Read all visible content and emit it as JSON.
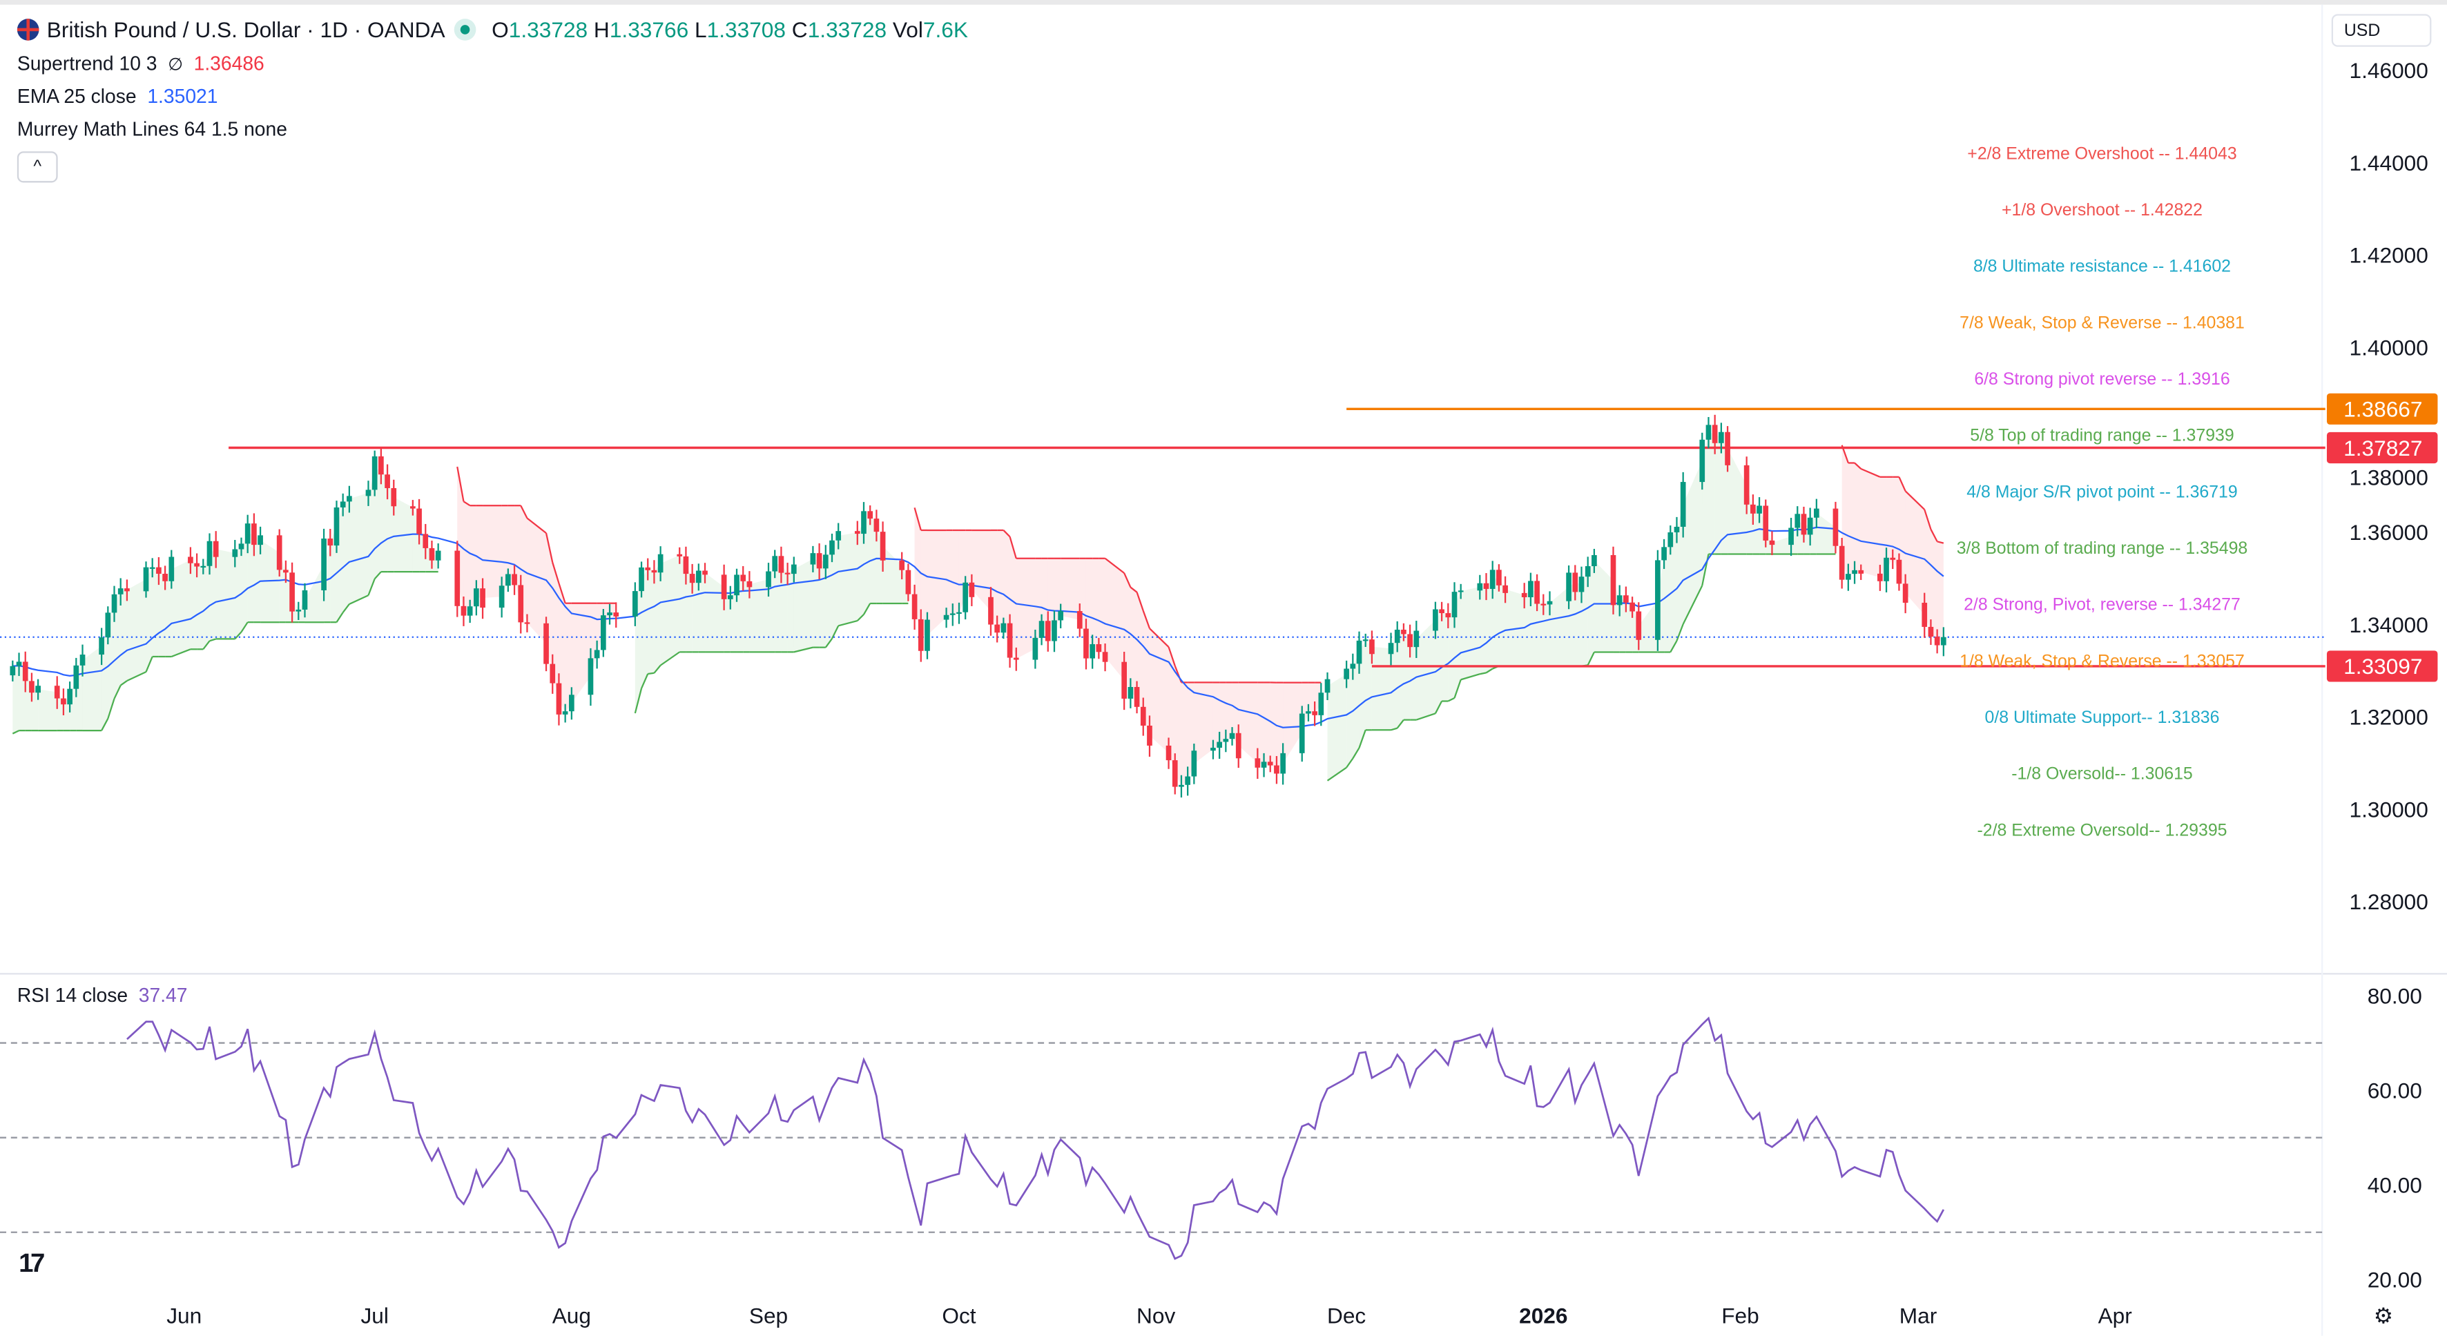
{
  "header": {
    "symbol_title": "British Pound / U.S. Dollar · 1D · OANDA",
    "o_label": "O",
    "o": "1.33728",
    "h_label": "H",
    "h": "1.33766",
    "l_label": "L",
    "l": "1.33708",
    "c_label": "C",
    "c": "1.33728",
    "vol_label": "Vol",
    "vol": "7.6K"
  },
  "indicators": {
    "supertrend": {
      "label": "Supertrend 10 3",
      "symbol": "∅",
      "value": "1.36486"
    },
    "ema": {
      "label": "EMA 25 close",
      "value": "1.35021"
    },
    "murrey": {
      "label": "Murrey Math Lines 64 1.5 none"
    },
    "rsi": {
      "label": "RSI 14 close",
      "value": "37.47"
    }
  },
  "currency": "USD",
  "collapse_icon": "^",
  "logo": "TV",
  "settings_icon": "gear-icon",
  "colors": {
    "up": "#089981",
    "down": "#f23645",
    "ema": "#2962ff",
    "rsi": "#7e57c2",
    "supertrend_up": "#4caf50",
    "supertrend_down": "#f23645",
    "orange_line": "#f57c00"
  },
  "chart_data": {
    "type": "candlestick",
    "title": "British Pound / U.S. Dollar · 1D · OANDA",
    "ylim": [
      1.27,
      1.465
    ],
    "price_ticks": [
      "1.46000",
      "1.44000",
      "1.42000",
      "1.40000",
      "1.38000",
      "1.36000",
      "1.34000",
      "1.32000",
      "1.30000",
      "1.28000"
    ],
    "price_tick_values": [
      1.46,
      1.44,
      1.42,
      1.4,
      1.38,
      1.36,
      1.34,
      1.32,
      1.3,
      1.28
    ],
    "time_ticks": [
      {
        "label": "Jun",
        "date": "2025-06-01"
      },
      {
        "label": "Jul",
        "date": "2025-07-01"
      },
      {
        "label": "Aug",
        "date": "2025-08-01"
      },
      {
        "label": "Sep",
        "date": "2025-09-01"
      },
      {
        "label": "Oct",
        "date": "2025-10-01"
      },
      {
        "label": "Nov",
        "date": "2025-11-01"
      },
      {
        "label": "Dec",
        "date": "2025-12-01"
      },
      {
        "label": "2026",
        "date": "2026-01-01"
      },
      {
        "label": "Feb",
        "date": "2026-02-01"
      },
      {
        "label": "Mar",
        "date": "2026-03-01"
      },
      {
        "label": "Apr",
        "date": "2026-04-01"
      }
    ],
    "rsi_ticks": [
      "80.00",
      "60.00",
      "40.00",
      "20.00"
    ],
    "rsi_tick_values": [
      80,
      60,
      40,
      20
    ],
    "rsi_bands": [
      70,
      50,
      30
    ],
    "closes": [
      [
        "2025-05-05",
        1.331
      ],
      [
        "2025-05-12",
        1.322
      ],
      [
        "2025-05-23",
        1.35
      ],
      [
        "2025-06-02",
        1.353
      ],
      [
        "2025-06-13",
        1.36
      ],
      [
        "2025-06-19",
        1.343
      ],
      [
        "2025-06-25",
        1.364
      ],
      [
        "2025-07-01",
        1.374
      ],
      [
        "2025-07-08",
        1.36
      ],
      [
        "2025-07-15",
        1.343
      ],
      [
        "2025-07-22",
        1.35
      ],
      [
        "2025-07-31",
        1.32
      ],
      [
        "2025-08-06",
        1.34
      ],
      [
        "2025-08-15",
        1.355
      ],
      [
        "2025-08-25",
        1.347
      ],
      [
        "2025-09-01",
        1.352
      ],
      [
        "2025-09-08",
        1.353
      ],
      [
        "2025-09-16",
        1.364
      ],
      [
        "2025-09-22",
        1.35
      ],
      [
        "2025-09-25",
        1.337
      ],
      [
        "2025-10-03",
        1.347
      ],
      [
        "2025-10-10",
        1.333
      ],
      [
        "2025-10-17",
        1.342
      ],
      [
        "2025-10-27",
        1.327
      ],
      [
        "2025-11-04",
        1.305
      ],
      [
        "2025-11-11",
        1.316
      ],
      [
        "2025-11-19",
        1.308
      ],
      [
        "2025-11-25",
        1.321
      ],
      [
        "2025-12-03",
        1.335
      ],
      [
        "2025-12-12",
        1.338
      ],
      [
        "2025-12-22",
        1.35
      ],
      [
        "2026-01-02",
        1.345
      ],
      [
        "2026-01-09",
        1.353
      ],
      [
        "2026-01-16",
        1.34
      ],
      [
        "2026-01-22",
        1.364
      ],
      [
        "2026-01-27",
        1.384
      ],
      [
        "2026-02-02",
        1.367
      ],
      [
        "2026-02-06",
        1.358
      ],
      [
        "2026-02-13",
        1.364
      ],
      [
        "2026-02-18",
        1.35
      ],
      [
        "2026-02-25",
        1.353
      ],
      [
        "2026-03-02",
        1.337
      ],
      [
        "2026-03-05",
        1.33728
      ]
    ],
    "last_price": 1.33728,
    "murrey_levels": [
      {
        "label": "+2/8 Extreme Overshoot --  1.44043",
        "value": 1.44043,
        "color": "#ef5350"
      },
      {
        "label": "+1/8 Overshoot --  1.42822",
        "value": 1.42822,
        "color": "#ef5350"
      },
      {
        "label": "8/8 Ultimate resistance --  1.41602",
        "value": 1.41602,
        "color": "#1fa9c9"
      },
      {
        "label": "7/8 Weak, Stop & Reverse --  1.40381",
        "value": 1.40381,
        "color": "#f7931e"
      },
      {
        "label": "6/8 Strong pivot reverse --  1.3916",
        "value": 1.3916,
        "color": "#d94fe8"
      },
      {
        "label": "5/8 Top of trading range --  1.37939",
        "value": 1.37939,
        "color": "#5aab4f"
      },
      {
        "label": "4/8 Major S/R pivot point --  1.36719",
        "value": 1.36719,
        "color": "#1fa9c9"
      },
      {
        "label": "3/8 Bottom of trading range --  1.35498",
        "value": 1.35498,
        "color": "#5aab4f"
      },
      {
        "label": "2/8 Strong, Pivot, reverse --  1.34277",
        "value": 1.34277,
        "color": "#d94fe8"
      },
      {
        "label": "1/8 Weak, Stop & Reverse --  1.33057",
        "value": 1.33057,
        "color": "#f7931e"
      },
      {
        "label": "0/8 Ultimate Support--  1.31836",
        "value": 1.31836,
        "color": "#1fa9c9"
      },
      {
        "label": "-1/8 Oversold--  1.30615",
        "value": 1.30615,
        "color": "#5aab4f"
      },
      {
        "label": "-2/8 Extreme Oversold--  1.29395",
        "value": 1.29395,
        "color": "#5aab4f"
      }
    ],
    "horizontal_lines": [
      {
        "label": "1.38667",
        "value": 1.38667,
        "color": "#f57c00",
        "from": "2025-12-01"
      },
      {
        "label": "1.37827",
        "value": 1.37827,
        "color": "#f23645",
        "from": "2025-06-08"
      },
      {
        "label": "1.33097",
        "value": 1.33097,
        "color": "#f23645",
        "from": "2025-12-05"
      }
    ]
  }
}
